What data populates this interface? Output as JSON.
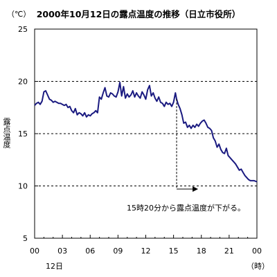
{
  "chart_data": {
    "type": "line",
    "title": "2000年10月12日の露点温度の推移（日立市役所）",
    "ylabel": "露点温度",
    "yunit": "（℃）",
    "xunit": "（時）",
    "day_label": "12日",
    "annotation": "15時20分から露点温度が下がる。",
    "annotation_from_hour": 15.33,
    "annotation_to_hour": 17.2,
    "annotation_arrow_y": 9.7,
    "ylim": [
      5,
      25
    ],
    "xlim": [
      0,
      24
    ],
    "yticks": [
      5,
      10,
      15,
      20,
      25
    ],
    "xticks": [
      "00",
      "03",
      "06",
      "09",
      "12",
      "15",
      "18",
      "21",
      "00"
    ],
    "grid_y_dashed": [
      10,
      15,
      20
    ],
    "line_color": "#1a1a80",
    "series": [
      {
        "name": "",
        "x": [
          0,
          0.2,
          0.4,
          0.6,
          0.8,
          1.0,
          1.2,
          1.4,
          1.6,
          1.8,
          2.0,
          2.2,
          2.4,
          2.6,
          2.8,
          3.0,
          3.2,
          3.4,
          3.6,
          3.8,
          4.0,
          4.2,
          4.4,
          4.6,
          4.8,
          5.0,
          5.2,
          5.4,
          5.6,
          5.8,
          6.0,
          6.2,
          6.4,
          6.6,
          6.8,
          7.0,
          7.2,
          7.4,
          7.6,
          7.8,
          8.0,
          8.2,
          8.4,
          8.6,
          8.8,
          9.0,
          9.2,
          9.4,
          9.6,
          9.8,
          10.0,
          10.2,
          10.4,
          10.6,
          10.8,
          11.0,
          11.2,
          11.4,
          11.6,
          11.8,
          12.0,
          12.2,
          12.4,
          12.6,
          12.8,
          13.0,
          13.2,
          13.4,
          13.6,
          13.8,
          14.0,
          14.2,
          14.4,
          14.6,
          14.8,
          15.0,
          15.2,
          15.33,
          15.5,
          15.7,
          15.9,
          16.1,
          16.3,
          16.5,
          16.7,
          16.9,
          17.1,
          17.3,
          17.5,
          17.7,
          17.9,
          18.1,
          18.3,
          18.5,
          18.7,
          18.9,
          19.1,
          19.3,
          19.5,
          19.7,
          19.9,
          20.1,
          20.3,
          20.5,
          20.7,
          20.9,
          21.1,
          21.3,
          21.5,
          21.7,
          21.9,
          22.1,
          22.3,
          22.5,
          22.7,
          22.9,
          23.1,
          23.3,
          23.5,
          23.7,
          24.0
        ],
        "values": [
          17.7,
          17.9,
          18.0,
          17.8,
          18.1,
          19.0,
          19.1,
          18.7,
          18.3,
          18.2,
          18.0,
          18.1,
          18.0,
          17.9,
          17.9,
          17.8,
          17.7,
          17.8,
          17.5,
          17.6,
          17.2,
          17.0,
          17.4,
          16.8,
          17.0,
          16.9,
          16.7,
          17.0,
          16.6,
          16.8,
          16.7,
          16.9,
          17.0,
          17.2,
          17.0,
          18.5,
          18.3,
          18.9,
          19.4,
          18.6,
          18.5,
          18.9,
          18.8,
          18.6,
          18.5,
          19.0,
          19.9,
          18.6,
          19.5,
          18.4,
          18.8,
          18.5,
          18.7,
          19.1,
          18.5,
          18.9,
          18.6,
          18.4,
          19.0,
          18.7,
          18.3,
          19.2,
          19.6,
          18.6,
          18.9,
          18.4,
          18.1,
          18.5,
          18.0,
          17.9,
          17.6,
          18.0,
          17.8,
          17.9,
          17.6,
          18.0,
          18.9,
          18.3,
          17.8,
          17.4,
          16.8,
          16.0,
          16.1,
          15.6,
          15.8,
          15.5,
          15.8,
          15.6,
          15.9,
          15.7,
          16.0,
          16.2,
          16.3,
          16.0,
          15.6,
          15.5,
          15.3,
          14.6,
          14.3,
          13.7,
          14.0,
          13.5,
          13.2,
          13.1,
          13.6,
          12.9,
          12.7,
          12.5,
          12.3,
          12.1,
          11.8,
          11.5,
          11.6,
          11.3,
          11.0,
          10.8,
          10.6,
          10.5,
          10.5,
          10.5,
          10.4
        ]
      }
    ]
  }
}
